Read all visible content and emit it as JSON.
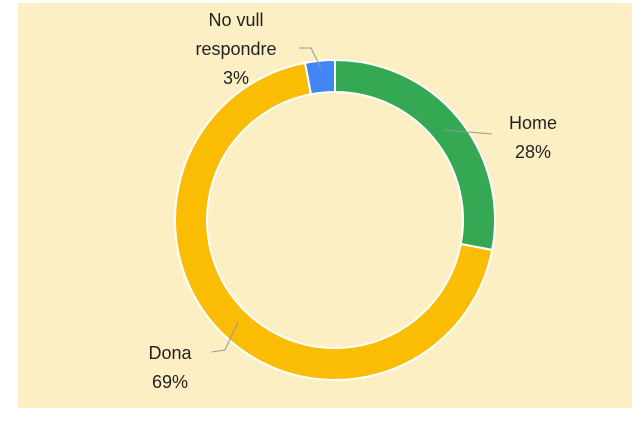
{
  "chart_data": {
    "type": "pie",
    "categories": [
      "Home",
      "Dona",
      "No vull respondre"
    ],
    "values": [
      28,
      69,
      3
    ],
    "value_labels": [
      "28%",
      "69%",
      "3%"
    ],
    "colors": [
      "#34a853",
      "#fbbc04",
      "#4285f4"
    ],
    "donut": true
  }
}
